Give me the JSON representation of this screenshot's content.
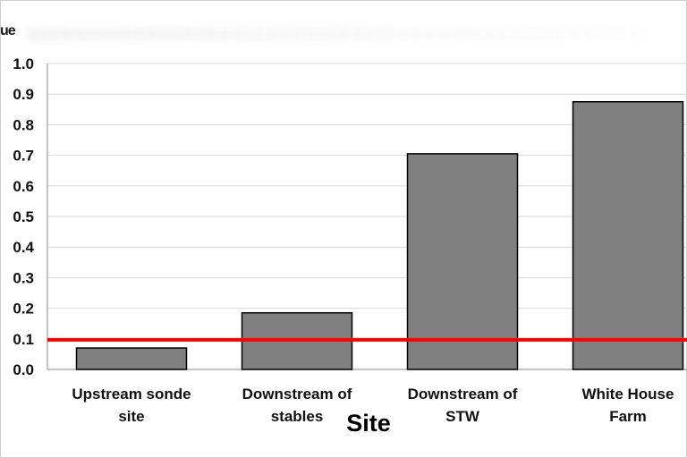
{
  "header_fragment": "ue",
  "chart_data": {
    "type": "bar",
    "title": "",
    "xlabel": "Site",
    "ylabel": "",
    "ylim": [
      0,
      1.0
    ],
    "yticks": [
      "0.0",
      "0.1",
      "0.2",
      "0.3",
      "0.4",
      "0.5",
      "0.6",
      "0.7",
      "0.8",
      "0.9",
      "1.0"
    ],
    "categories": [
      [
        "Upstream sonde",
        "site"
      ],
      [
        "Downstream of",
        "stables"
      ],
      [
        "Downstream of",
        "STW"
      ],
      [
        "White House",
        "Farm"
      ]
    ],
    "values": [
      0.07,
      0.185,
      0.705,
      0.875
    ],
    "bar_color": "#808080",
    "bar_edge_color": "#000000",
    "reference_line": {
      "value": 0.097,
      "color": "#ff0000"
    },
    "grid": true,
    "grid_color": "#d9d9d9"
  }
}
